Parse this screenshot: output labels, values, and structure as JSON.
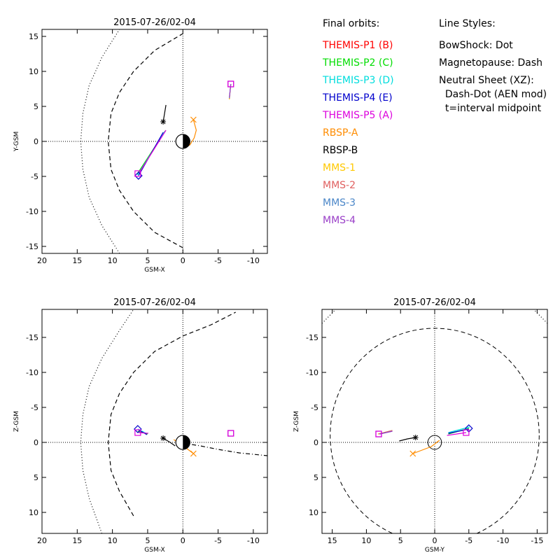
{
  "legend": {
    "title": "Final orbits:",
    "items": [
      {
        "label": "THEMIS-P1 (B)",
        "color": "#ff0000"
      },
      {
        "label": "THEMIS-P2 (C)",
        "color": "#00dd00"
      },
      {
        "label": "THEMIS-P3 (D)",
        "color": "#00dddd"
      },
      {
        "label": "THEMIS-P4 (E)",
        "color": "#0000cc"
      },
      {
        "label": "THEMIS-P5 (A)",
        "color": "#dd00dd"
      },
      {
        "label": "RBSP-A",
        "color": "#ff8c00"
      },
      {
        "label": "RBSP-B",
        "color": "#000000"
      },
      {
        "label": "MMS-1",
        "color": "#ffc800"
      },
      {
        "label": "MMS-2",
        "color": "#e06060"
      },
      {
        "label": "MMS-3",
        "color": "#4a86c8"
      },
      {
        "label": "MMS-4",
        "color": "#9a40c8"
      }
    ]
  },
  "line_styles": {
    "title": "Line Styles:",
    "lines": [
      "BowShock: Dot",
      "Magnetopause: Dash",
      "Neutral Sheet (XZ):",
      "  Dash-Dot (AEN mod)",
      "  t=interval midpoint"
    ]
  },
  "chart_data": [
    {
      "type": "line",
      "title": "2015-07-26/02-04",
      "xlabel": "GSM-X",
      "ylabel": "Y-GSM",
      "xlim": [
        20,
        -12
      ],
      "ylim": [
        16,
        -16
      ],
      "xticks": [
        20,
        15,
        10,
        5,
        0,
        -5,
        -10
      ],
      "yticks": [
        -15,
        -10,
        -5,
        0,
        5,
        10,
        15
      ],
      "curves": [
        {
          "name": "bowshock",
          "color": "#000000",
          "dash": "1,3",
          "points": [
            [
              9.0,
              -16
            ],
            [
              11.5,
              -12
            ],
            [
              13.3,
              -8
            ],
            [
              14.2,
              -4
            ],
            [
              14.5,
              0
            ],
            [
              14.2,
              4
            ],
            [
              13.3,
              8
            ],
            [
              11.5,
              12
            ],
            [
              9.0,
              16
            ]
          ]
        },
        {
          "name": "magnetopause",
          "color": "#000000",
          "dash": "6,4",
          "points": [
            [
              0,
              -15.2
            ],
            [
              4.0,
              -13
            ],
            [
              7.0,
              -10
            ],
            [
              9.0,
              -7
            ],
            [
              10.2,
              -4
            ],
            [
              10.6,
              0
            ],
            [
              10.2,
              4
            ],
            [
              9.0,
              7
            ],
            [
              7.0,
              10
            ],
            [
              4.0,
              13
            ],
            [
              0,
              15.4
            ]
          ]
        },
        {
          "name": "themis-p2",
          "color": "#00dd00",
          "points": [
            [
              6.5,
              -4.7
            ],
            [
              2.5,
              1.5
            ]
          ]
        },
        {
          "name": "themis-p3",
          "color": "#00dddd",
          "points": [
            [
              6.4,
              -4.8
            ],
            [
              2.6,
              1.4
            ]
          ]
        },
        {
          "name": "themis-p4",
          "color": "#0000cc",
          "points": [
            [
              6.3,
              -4.9
            ],
            [
              2.8,
              1.3
            ]
          ]
        },
        {
          "name": "themis-p5",
          "color": "#dd00dd",
          "points": [
            [
              6.2,
              -4.5
            ],
            [
              2.4,
              1.6
            ]
          ]
        },
        {
          "name": "rbsp-a",
          "color": "#ff8c00",
          "points": [
            [
              -0.2,
              -0.9
            ],
            [
              -1.0,
              -0.5
            ],
            [
              -1.6,
              0.5
            ],
            [
              -1.9,
              1.6
            ],
            [
              -1.5,
              3.1
            ]
          ]
        },
        {
          "name": "rbsp-b",
          "color": "#000000",
          "points": [
            [
              2.8,
              2.8
            ],
            [
              2.6,
              4.0
            ],
            [
              2.4,
              5.2
            ]
          ]
        },
        {
          "name": "mms-1",
          "color": "#ffc800",
          "points": [
            [
              -6.6,
              6.0
            ],
            [
              -6.8,
              8.2
            ]
          ]
        },
        {
          "name": "mms-2",
          "color": "#e06060",
          "points": [
            [
              -6.6,
              6.1
            ],
            [
              -6.8,
              8.2
            ]
          ]
        },
        {
          "name": "mms-3",
          "color": "#4a86c8",
          "points": [
            [
              -6.6,
              6.2
            ],
            [
              -6.8,
              8.2
            ]
          ]
        },
        {
          "name": "mms-4",
          "color": "#9a40c8",
          "points": [
            [
              -6.6,
              6.3
            ],
            [
              -6.8,
              8.2
            ]
          ]
        }
      ],
      "markers": [
        {
          "shape": "diamond",
          "color": "#0000cc",
          "x": 6.3,
          "y": -4.9
        },
        {
          "shape": "square",
          "color": "#dd00dd",
          "x": 6.4,
          "y": -4.6
        },
        {
          "shape": "cross",
          "color": "#ff8c00",
          "x": -1.5,
          "y": 3.1
        },
        {
          "shape": "star",
          "color": "#000000",
          "x": 2.8,
          "y": 2.8
        },
        {
          "shape": "square",
          "color": "#9a40c8",
          "x": -6.8,
          "y": 8.2
        },
        {
          "shape": "square",
          "color": "#dd00dd",
          "x": -6.8,
          "y": 8.2
        }
      ]
    },
    {
      "type": "line",
      "title": "2015-07-26/02-04",
      "xlabel": "GSM-X",
      "ylabel": "Z-GSM",
      "xlim": [
        20,
        -12
      ],
      "ylim": [
        -19,
        13
      ],
      "xticks": [
        20,
        15,
        10,
        5,
        0,
        -5,
        -10
      ],
      "yticks": [
        10,
        5,
        0,
        -5,
        -10,
        -15
      ],
      "curves": [
        {
          "name": "bowshock",
          "color": "#000000",
          "dash": "1,3",
          "points": [
            [
              11.5,
              13
            ],
            [
              13.3,
              8
            ],
            [
              14.2,
              4
            ],
            [
              14.5,
              0
            ],
            [
              14.2,
              -4
            ],
            [
              13.3,
              -8
            ],
            [
              11.5,
              -12
            ],
            [
              9.0,
              -16
            ],
            [
              7.0,
              -19
            ]
          ]
        },
        {
          "name": "magnetopause",
          "color": "#000000",
          "dash": "6,4",
          "points": [
            [
              7.0,
              10.5
            ],
            [
              9.0,
              7
            ],
            [
              10.2,
              4
            ],
            [
              10.6,
              0
            ],
            [
              10.2,
              -4
            ],
            [
              9.0,
              -7
            ],
            [
              7.0,
              -10
            ],
            [
              4.0,
              -13
            ],
            [
              0,
              -15.2
            ],
            [
              -4.0,
              -16.8
            ],
            [
              -7.5,
              -18.6
            ]
          ]
        },
        {
          "name": "neutral-sheet",
          "color": "#000000",
          "dash": "6,3,1,3",
          "points": [
            [
              0,
              0.1
            ],
            [
              -2.5,
              0.5
            ],
            [
              -5,
              1.0
            ],
            [
              -8,
              1.5
            ],
            [
              -12,
              1.9
            ]
          ]
        },
        {
          "name": "themis-p2",
          "color": "#00dd00",
          "points": [
            [
              6.4,
              -1.6
            ],
            [
              5.0,
              -1.2
            ]
          ]
        },
        {
          "name": "themis-p3",
          "color": "#00dddd",
          "points": [
            [
              6.4,
              -1.9
            ],
            [
              5.2,
              -1.3
            ]
          ]
        },
        {
          "name": "themis-p4",
          "color": "#0000cc",
          "points": [
            [
              6.3,
              -1.8
            ],
            [
              5.1,
              -1.1
            ]
          ]
        },
        {
          "name": "themis-p5",
          "color": "#dd00dd",
          "points": [
            [
              6.3,
              -1.4
            ],
            [
              4.9,
              -1.3
            ]
          ]
        },
        {
          "name": "rbsp-a",
          "color": "#ff8c00",
          "points": [
            [
              1.3,
              -0.4
            ],
            [
              -0.2,
              0.6
            ],
            [
              -1.5,
              1.6
            ]
          ]
        },
        {
          "name": "rbsp-b",
          "color": "#000000",
          "points": [
            [
              2.8,
              -0.6
            ],
            [
              1.8,
              0.0
            ],
            [
              1.1,
              0.5
            ]
          ]
        }
      ],
      "markers": [
        {
          "shape": "diamond",
          "color": "#0000cc",
          "x": 6.4,
          "y": -1.9
        },
        {
          "shape": "square",
          "color": "#dd00dd",
          "x": 6.4,
          "y": -1.4
        },
        {
          "shape": "cross",
          "color": "#ff8c00",
          "x": -1.5,
          "y": 1.6
        },
        {
          "shape": "star",
          "color": "#000000",
          "x": 2.8,
          "y": -0.6
        },
        {
          "shape": "square",
          "color": "#9a40c8",
          "x": -6.8,
          "y": -1.3
        },
        {
          "shape": "square",
          "color": "#dd00dd",
          "x": -6.8,
          "y": -1.3
        }
      ]
    },
    {
      "type": "line",
      "title": "2015-07-26/02-04",
      "xlabel": "GSM-Y",
      "ylabel": "Z-GSM",
      "xlim": [
        16.5,
        -16.5
      ],
      "ylim": [
        -19,
        13
      ],
      "xticks": [
        15,
        10,
        5,
        0,
        -5,
        -10,
        -15
      ],
      "yticks": [
        10,
        5,
        0,
        -5,
        -10,
        -15
      ],
      "curves": [
        {
          "name": "themis-p2",
          "color": "#00dd00",
          "points": [
            [
              -2.0,
              -1.2
            ],
            [
              -5.0,
              -2.0
            ]
          ]
        },
        {
          "name": "themis-p3",
          "color": "#00dddd",
          "points": [
            [
              -2.0,
              -1.4
            ],
            [
              -5.1,
              -2.2
            ]
          ]
        },
        {
          "name": "themis-p4",
          "color": "#0000cc",
          "points": [
            [
              -2.0,
              -1.3
            ],
            [
              -5.0,
              -1.9
            ]
          ]
        },
        {
          "name": "themis-p5",
          "color": "#dd00dd",
          "points": [
            [
              -1.8,
              -1.0
            ],
            [
              -4.6,
              -1.4
            ]
          ]
        },
        {
          "name": "rbsp-a",
          "color": "#ff8c00",
          "points": [
            [
              3.2,
              1.6
            ],
            [
              0.5,
              0.6
            ],
            [
              -0.7,
              -0.3
            ]
          ]
        },
        {
          "name": "rbsp-b",
          "color": "#000000",
          "points": [
            [
              5.2,
              -0.2
            ],
            [
              4.0,
              -0.5
            ],
            [
              2.8,
              -0.7
            ]
          ]
        },
        {
          "name": "mms-1",
          "color": "#ffc800",
          "points": [
            [
              8.3,
              -1.2
            ],
            [
              6.2,
              -1.7
            ]
          ]
        },
        {
          "name": "mms-2",
          "color": "#e06060",
          "points": [
            [
              8.2,
              -1.2
            ],
            [
              6.2,
              -1.7
            ]
          ]
        },
        {
          "name": "mms-3",
          "color": "#4a86c8",
          "points": [
            [
              8.1,
              -1.2
            ],
            [
              6.2,
              -1.6
            ]
          ]
        },
        {
          "name": "mms-4",
          "color": "#9a40c8",
          "points": [
            [
              8.0,
              -1.2
            ],
            [
              6.2,
              -1.6
            ]
          ]
        }
      ],
      "circles": [
        {
          "name": "magnetopause",
          "color": "#000000",
          "dash": "6,4",
          "cx": 0,
          "cy": -1,
          "r": 15.3
        },
        {
          "name": "earth-outline",
          "color": "#000000",
          "dash": "",
          "cx": 0,
          "cy": 0,
          "r": 1.0
        }
      ],
      "arcs": [
        {
          "name": "bowshock-lower-left",
          "color": "#000000",
          "dash": "1,3",
          "points": [
            [
              16.5,
              -17
            ],
            [
              15.5,
              -18
            ],
            [
              14.5,
              -19
            ]
          ]
        },
        {
          "name": "bowshock-lower-right",
          "color": "#000000",
          "dash": "1,3",
          "points": [
            [
              -16.5,
              -17
            ],
            [
              -15.5,
              -18
            ],
            [
              -14.5,
              -19
            ]
          ]
        }
      ],
      "markers": [
        {
          "shape": "diamond",
          "color": "#0000cc",
          "x": -5.0,
          "y": -2.0
        },
        {
          "shape": "square",
          "color": "#dd00dd",
          "x": -4.6,
          "y": -1.4
        },
        {
          "shape": "cross",
          "color": "#ff8c00",
          "x": 3.2,
          "y": 1.6
        },
        {
          "shape": "star",
          "color": "#000000",
          "x": 2.8,
          "y": -0.7
        },
        {
          "shape": "square",
          "color": "#9a40c8",
          "x": 8.2,
          "y": -1.2
        },
        {
          "shape": "square",
          "color": "#dd00dd",
          "x": 8.2,
          "y": -1.2
        }
      ]
    }
  ]
}
